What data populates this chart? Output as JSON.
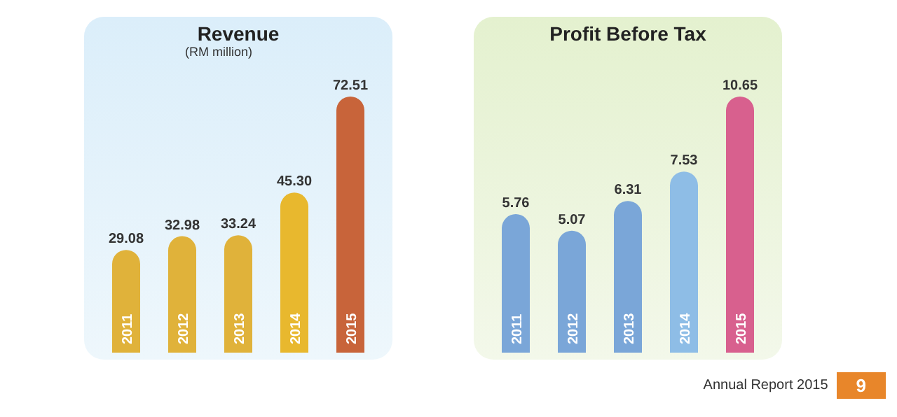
{
  "chart_data": [
    {
      "type": "bar",
      "title": "Revenue",
      "subtitle": "(RM million)",
      "categories": [
        "2011",
        "2012",
        "2013",
        "2014",
        "2015"
      ],
      "values": [
        29.08,
        32.98,
        33.24,
        45.3,
        72.51
      ],
      "colors": [
        "#e0b23a",
        "#e0b23a",
        "#e0b23a",
        "#e8b82e",
        "#c8643a"
      ],
      "value_labels": [
        "29.08",
        "32.98",
        "33.24",
        "45.30",
        "72.51"
      ]
    },
    {
      "type": "bar",
      "title": "Profit Before Tax",
      "categories": [
        "2011",
        "2012",
        "2013",
        "2014",
        "2015"
      ],
      "values": [
        5.76,
        5.07,
        6.31,
        7.53,
        10.65
      ],
      "colors": [
        "#7aa6d8",
        "#7aa6d8",
        "#7aa6d8",
        "#8ebde6",
        "#d8608e"
      ],
      "value_labels": [
        "5.76",
        "5.07",
        "6.31",
        "7.53",
        "10.65"
      ],
      "annotations": [
        "Annual Report 2015",
        "9"
      ]
    }
  ]
}
